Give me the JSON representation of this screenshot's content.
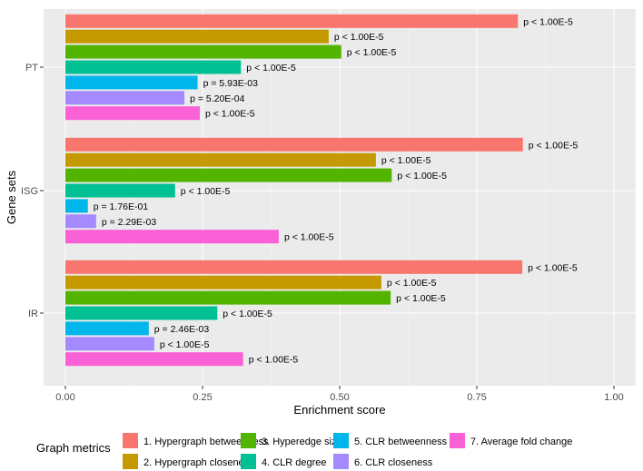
{
  "chart_data": {
    "type": "bar",
    "orientation": "horizontal",
    "xlabel": "Enrichment score",
    "ylabel": "Gene sets",
    "xlim": [
      -0.04,
      1.04
    ],
    "xticks": [
      "0.00",
      "0.25",
      "0.50",
      "0.75",
      "1.00"
    ],
    "xtick_values": [
      0,
      0.25,
      0.5,
      0.75,
      1
    ],
    "categories": [
      "PT",
      "ISG",
      "IR"
    ],
    "legend_title": "Graph metrics",
    "legend_position": "bottom",
    "series": [
      {
        "name": "1. Hypergraph betweenness",
        "color": "#F8766D",
        "values": [
          0.825,
          0.834,
          0.833
        ],
        "labels": [
          "p < 1.00E-5",
          "p < 1.00E-5",
          "p < 1.00E-5"
        ]
      },
      {
        "name": "2. Hypergraph closeness",
        "color": "#C49A00",
        "values": [
          0.48,
          0.566,
          0.576
        ],
        "labels": [
          "p < 1.00E-5",
          "p < 1.00E-5",
          "p < 1.00E-5"
        ]
      },
      {
        "name": "3. Hyperedge size",
        "color": "#53B400",
        "values": [
          0.503,
          0.595,
          0.593
        ],
        "labels": [
          "p < 1.00E-5",
          "p < 1.00E-5",
          "p < 1.00E-5"
        ]
      },
      {
        "name": "4. CLR degree",
        "color": "#00C094",
        "values": [
          0.32,
          0.2,
          0.277
        ],
        "labels": [
          "p < 1.00E-5",
          "p < 1.00E-5",
          "p < 1.00E-5"
        ]
      },
      {
        "name": "5. CLR betweenness",
        "color": "#00B6EB",
        "values": [
          0.241,
          0.041,
          0.152
        ],
        "labels": [
          "p = 5.93E-03",
          "p = 1.76E-01",
          "p = 2.46E-03"
        ]
      },
      {
        "name": "6. CLR closeness",
        "color": "#A58AFF",
        "values": [
          0.217,
          0.056,
          0.162
        ],
        "labels": [
          "p = 5.20E-04",
          "p = 2.29E-03",
          "p < 1.00E-5"
        ]
      },
      {
        "name": "7. Average fold change",
        "color": "#FB61D7",
        "values": [
          0.245,
          0.389,
          0.324
        ],
        "labels": [
          "p < 1.00E-5",
          "p < 1.00E-5",
          "p < 1.00E-5"
        ]
      }
    ]
  }
}
